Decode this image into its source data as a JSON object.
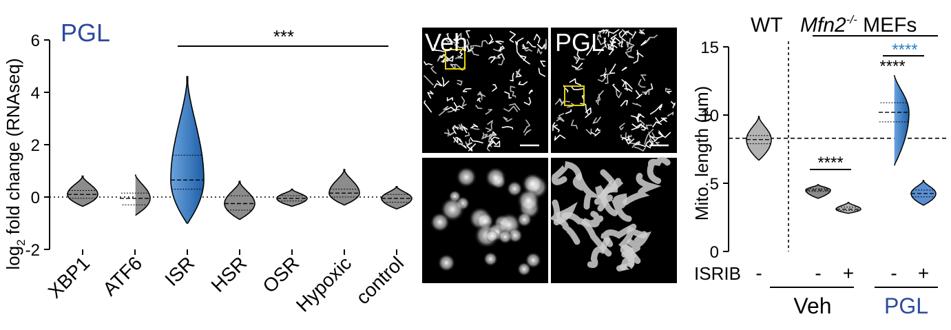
{
  "chart_data": [
    {
      "panel": "violin-rnaseq",
      "type": "violin",
      "title": "PGL",
      "ylabel": "log2 fold change (RNAseq)",
      "ylim": [
        -2,
        6
      ],
      "yticks": [
        -2,
        0,
        2,
        4,
        6
      ],
      "categories": [
        "XBP1",
        "ATF6",
        "ISR",
        "HSR",
        "OSR",
        "Hypoxic",
        "control"
      ],
      "series": [
        {
          "name": "XBP1",
          "min": -0.35,
          "max": 0.8,
          "median": 0.1,
          "q1": -0.05,
          "q3": 0.25,
          "color": "#8c8c8c"
        },
        {
          "name": "ATF6",
          "min": -0.7,
          "max": 0.9,
          "median": -0.05,
          "q1": -0.3,
          "q3": 0.15,
          "color": "#8c8c8c"
        },
        {
          "name": "ISR",
          "min": -1.0,
          "max": 4.6,
          "median": 0.65,
          "q1": 0.3,
          "q3": 1.6,
          "color": "#2f6fb6"
        },
        {
          "name": "HSR",
          "min": -0.85,
          "max": 0.6,
          "median": -0.25,
          "q1": -0.5,
          "q3": 0.05,
          "color": "#8c8c8c"
        },
        {
          "name": "OSR",
          "min": -0.35,
          "max": 0.3,
          "median": -0.05,
          "q1": -0.15,
          "q3": 0.05,
          "color": "#8c8c8c"
        },
        {
          "name": "Hypoxic",
          "min": -0.3,
          "max": 1.05,
          "median": 0.15,
          "q1": 0.0,
          "q3": 0.3,
          "color": "#8c8c8c"
        },
        {
          "name": "control",
          "min": -0.45,
          "max": 0.4,
          "median": -0.05,
          "q1": -0.2,
          "q3": 0.1,
          "color": "#8c8c8c"
        }
      ],
      "reference_line": 0,
      "significance": {
        "label": "***",
        "from": "ISR",
        "to": "control"
      }
    },
    {
      "panel": "violin-mito-length",
      "type": "violin",
      "title_parts": {
        "wt": "WT",
        "gene": "Mfn2",
        "superscript": "-/-",
        "suffix": " MEFs"
      },
      "ylabel": "Mito. length (µm)",
      "ylim": [
        0,
        15
      ],
      "yticks": [
        0,
        5,
        10,
        15
      ],
      "categories": [
        "WT",
        "Veh -",
        "Veh +",
        "PGL -",
        "PGL +"
      ],
      "isrib_label": "ISRIB",
      "isrib_signs": [
        "-",
        "-",
        "+",
        "-",
        "+"
      ],
      "group_labels": [
        {
          "text": "Veh",
          "color": "#000000"
        },
        {
          "text": "PGL",
          "color": "#2e4a9e"
        }
      ],
      "series": [
        {
          "name": "WT",
          "min": 6.7,
          "max": 9.9,
          "median": 8.2,
          "q1": 7.9,
          "q3": 8.5,
          "color": "#b3b3b3"
        },
        {
          "name": "Veh -",
          "min": 3.9,
          "max": 4.9,
          "median": 4.5,
          "q1": 4.4,
          "q3": 4.6,
          "color": "#8c8c8c"
        },
        {
          "name": "Veh +",
          "min": 2.8,
          "max": 3.6,
          "median": 3.1,
          "q1": 3.0,
          "q3": 3.25,
          "color": "#b3b3b3"
        },
        {
          "name": "PGL -",
          "min": 6.3,
          "max": 13.1,
          "median": 10.2,
          "q1": 9.5,
          "q3": 10.9,
          "color": "#2f6fb6"
        },
        {
          "name": "PGL +",
          "min": 3.4,
          "max": 5.2,
          "median": 4.25,
          "q1": 4.0,
          "q3": 4.5,
          "color": "#5b8fd1"
        }
      ],
      "reference_line": 8.3,
      "significance": [
        {
          "label": "****",
          "from": "Veh -",
          "to": "Veh +",
          "color": "#000000"
        },
        {
          "label": "****",
          "from": "PGL -",
          "to": "PGL -",
          "color": "#000000"
        },
        {
          "label": "****",
          "from": "PGL -",
          "to": "PGL +",
          "color": "#2e7fc0"
        }
      ]
    }
  ],
  "micrographs": {
    "veh_label": "Veh",
    "pgl_label": "PGL"
  }
}
